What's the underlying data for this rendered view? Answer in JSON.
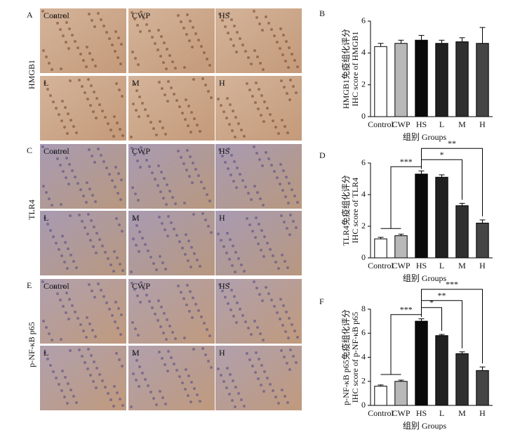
{
  "figure": {
    "panels": [
      {
        "letter": "A",
        "row_label": "HMGB1",
        "images": [
          "Control",
          "CWP",
          "HS",
          "L",
          "M",
          "H"
        ]
      },
      {
        "letter": "C",
        "row_label": "TLR4",
        "images": [
          "Control",
          "CWP",
          "HS",
          "L",
          "M",
          "H"
        ]
      },
      {
        "letter": "E",
        "row_label": "p-NF-κB p65",
        "images": [
          "Control",
          "CWP",
          "HS",
          "L",
          "M",
          "H"
        ]
      }
    ]
  },
  "chart_data": [
    {
      "type": "bar",
      "panel": "B",
      "ylabel": [
        "HMGB1免疫组化评分",
        "IHC score of HMGB1"
      ],
      "xlabel": "组别 Groups",
      "categories": [
        "Control",
        "CWP",
        "HS",
        "L",
        "M",
        "H"
      ],
      "values": [
        4.4,
        4.6,
        4.8,
        4.6,
        4.7,
        4.6
      ],
      "errors": [
        0.2,
        0.2,
        0.3,
        0.2,
        0.25,
        1.0
      ],
      "colors": [
        "#ffffff",
        "#b8b8b8",
        "#0a0a0a",
        "#202020",
        "#303030",
        "#454545"
      ],
      "ylim": [
        0,
        6
      ],
      "yticks": [
        0,
        2,
        4,
        6
      ],
      "annotations": []
    },
    {
      "type": "bar",
      "panel": "D",
      "ylabel": [
        "TLR4免疫组化评分",
        "IHC score of TLR4"
      ],
      "xlabel": "组别 Groups",
      "categories": [
        "Control",
        "CWP",
        "HS",
        "L",
        "M",
        "H"
      ],
      "values": [
        1.2,
        1.4,
        5.3,
        5.1,
        3.3,
        2.2
      ],
      "errors": [
        0.1,
        0.1,
        0.2,
        0.15,
        0.15,
        0.2
      ],
      "colors": [
        "#ffffff",
        "#b8b8b8",
        "#0a0a0a",
        "#202020",
        "#303030",
        "#454545"
      ],
      "ylim": [
        0,
        6
      ],
      "yticks": [
        0,
        2,
        4,
        6
      ],
      "annotations": [
        "***",
        "*",
        "**"
      ]
    },
    {
      "type": "bar",
      "panel": "F",
      "ylabel": [
        "p-NF-κB p65免疫组化评分",
        "IHC score of p-NF-κB p65"
      ],
      "xlabel": "组别 Groups",
      "categories": [
        "Control",
        "CWP",
        "HS",
        "L",
        "M",
        "H"
      ],
      "values": [
        1.6,
        2.0,
        7.0,
        5.8,
        4.3,
        2.9
      ],
      "errors": [
        0.1,
        0.1,
        0.2,
        0.1,
        0.15,
        0.3
      ],
      "colors": [
        "#ffffff",
        "#b8b8b8",
        "#0a0a0a",
        "#202020",
        "#303030",
        "#454545"
      ],
      "ylim": [
        0,
        8
      ],
      "yticks": [
        0,
        2,
        4,
        6,
        8
      ],
      "annotations": [
        "***",
        "*",
        "**",
        "***"
      ]
    }
  ]
}
